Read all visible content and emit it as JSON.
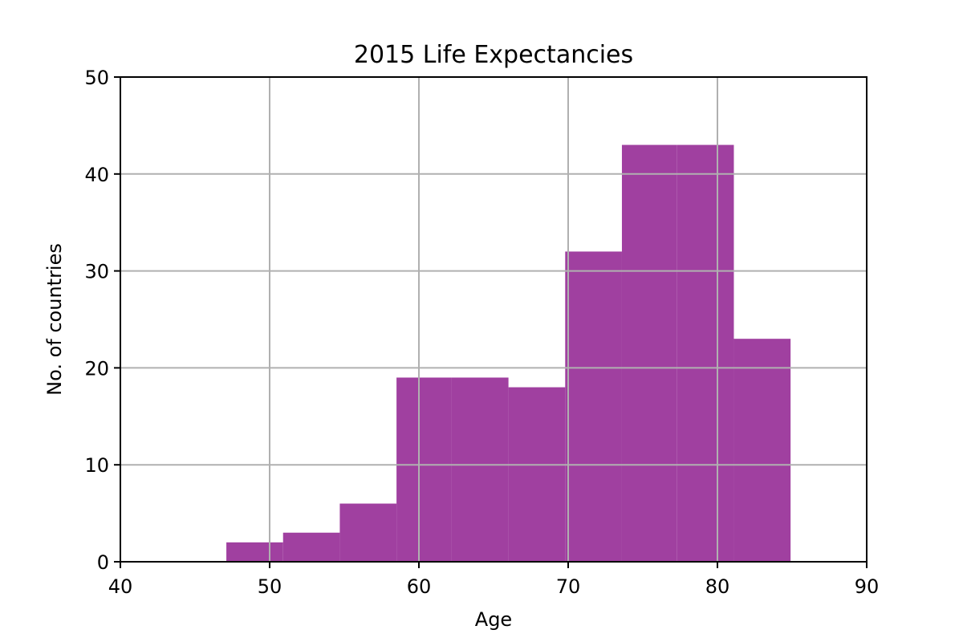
{
  "chart_data": {
    "type": "bar",
    "title": "2015 Life Expectancies",
    "xlabel": "Age",
    "ylabel": "No. of countries",
    "xlim": [
      40,
      90
    ],
    "ylim": [
      0,
      50
    ],
    "xticks": [
      40,
      50,
      60,
      70,
      80,
      90
    ],
    "yticks": [
      0,
      10,
      20,
      30,
      40,
      50
    ],
    "grid": true,
    "bar_color": "#a040a0",
    "bins": [
      {
        "start": 47.1,
        "end": 50.9,
        "count": 2
      },
      {
        "start": 50.9,
        "end": 54.7,
        "count": 3
      },
      {
        "start": 54.7,
        "end": 58.5,
        "count": 6
      },
      {
        "start": 58.5,
        "end": 62.2,
        "count": 19
      },
      {
        "start": 62.2,
        "end": 66.0,
        "count": 19
      },
      {
        "start": 66.0,
        "end": 69.8,
        "count": 18
      },
      {
        "start": 69.8,
        "end": 73.6,
        "count": 32
      },
      {
        "start": 73.6,
        "end": 77.3,
        "count": 43
      },
      {
        "start": 77.3,
        "end": 81.1,
        "count": 43
      },
      {
        "start": 81.1,
        "end": 84.9,
        "count": 23
      }
    ]
  }
}
